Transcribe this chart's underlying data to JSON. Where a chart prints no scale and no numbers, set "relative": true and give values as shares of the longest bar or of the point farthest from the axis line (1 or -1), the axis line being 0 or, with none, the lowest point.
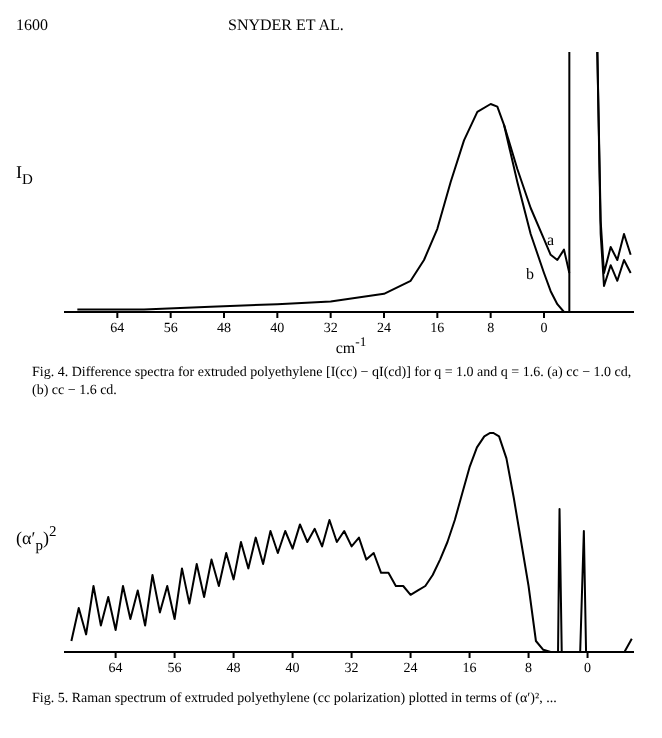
{
  "chart_data": [
    {
      "type": "line",
      "relative": true,
      "annotations": [
        "1600",
        "SNYDER ET AL.",
        "Fig. 4. Difference spectra for extruded polyethylene [I(cc) − qI(cd)] for q = 1.0 and q = 1.6. (a) cc − 1.0 cd, (b) cc − 1.6 cd."
      ],
      "ylabel": "I$_{D}$",
      "xlabel": "cm$^{-1}$",
      "xlim": [
        72,
        -13.5
      ],
      "xticks": [
        64,
        56,
        48,
        40,
        32,
        24,
        16,
        8,
        0
      ],
      "marker": "none",
      "line_style": "solid",
      "ref_lines": [
        {
          "axis": "x",
          "value": -3.8,
          "color": "#000000"
        }
      ],
      "series": [
        {
          "name": "a",
          "color": "#000000",
          "x": [
            70,
            60,
            50,
            40,
            32,
            24,
            20,
            18,
            16,
            14,
            12,
            10,
            8,
            7,
            6,
            4,
            2,
            0,
            -1,
            -2,
            -3,
            -3.8,
            -4,
            -8,
            -8.5,
            -9,
            -10,
            -11,
            -12,
            -13
          ],
          "values": [
            0.01,
            0.01,
            0.02,
            0.03,
            0.04,
            0.07,
            0.12,
            0.2,
            0.32,
            0.5,
            0.66,
            0.77,
            0.8,
            0.79,
            0.72,
            0.55,
            0.4,
            0.28,
            0.22,
            0.2,
            0.24,
            0.15,
            null,
            1.0,
            0.35,
            0.15,
            0.25,
            0.2,
            0.3,
            0.22
          ]
        },
        {
          "name": "b",
          "color": "#000000",
          "x": [
            6,
            4,
            2,
            0,
            -1,
            -2,
            -3,
            -4,
            -8,
            -8.5,
            -9,
            -10,
            -11,
            -12,
            -13
          ],
          "values": [
            0.72,
            0.5,
            0.3,
            0.15,
            0.08,
            0.03,
            0,
            null,
            1.0,
            0.3,
            0.1,
            0.18,
            0.12,
            0.2,
            0.15
          ]
        }
      ]
    },
    {
      "type": "line",
      "relative": true,
      "annotations": [
        "Fig. 5. Raman spectrum of extruded polyethylene (cc polarization) plotted in terms of (α′)², ..."
      ],
      "ylabel": "(α′$_{p}$)$^{2}$",
      "xlim": [
        71,
        -6.3
      ],
      "xticks": [
        64,
        56,
        48,
        40,
        32,
        24,
        16,
        8,
        0
      ],
      "marker": "none",
      "line_style": "solid",
      "series": [
        {
          "color": "#000000",
          "x": [
            70,
            69,
            68,
            67,
            66,
            65,
            64,
            63,
            62,
            61,
            60,
            59,
            58,
            57,
            56,
            55,
            54,
            53,
            52,
            51,
            50,
            49,
            48,
            47,
            46,
            45,
            44,
            43,
            42,
            41,
            40,
            39,
            38,
            37,
            36,
            35,
            34,
            33,
            32,
            31,
            30,
            29,
            28,
            27,
            26,
            25,
            24,
            23,
            22,
            21,
            20,
            19,
            18,
            17,
            16,
            15,
            14,
            13,
            12,
            11,
            10,
            9,
            8,
            7,
            6,
            5,
            4,
            3.8,
            3.5,
            1,
            0.5,
            0.2,
            -1,
            -3,
            -5,
            -6
          ],
          "values": [
            0.05,
            0.2,
            0.08,
            0.3,
            0.12,
            0.25,
            0.1,
            0.3,
            0.15,
            0.28,
            0.12,
            0.35,
            0.18,
            0.3,
            0.15,
            0.38,
            0.22,
            0.4,
            0.25,
            0.42,
            0.3,
            0.45,
            0.33,
            0.5,
            0.38,
            0.52,
            0.4,
            0.55,
            0.45,
            0.55,
            0.47,
            0.58,
            0.5,
            0.56,
            0.48,
            0.6,
            0.5,
            0.55,
            0.48,
            0.52,
            0.42,
            0.45,
            0.36,
            0.36,
            0.3,
            0.3,
            0.26,
            0.28,
            0.3,
            0.35,
            0.42,
            0.5,
            0.6,
            0.72,
            0.84,
            0.93,
            0.98,
            1.0,
            0.98,
            0.88,
            0.7,
            0.5,
            0.3,
            0.05,
            0.01,
            0,
            0,
            0.65,
            0,
            0,
            0.55,
            0,
            0,
            0,
            0,
            0.06
          ]
        }
      ]
    }
  ]
}
